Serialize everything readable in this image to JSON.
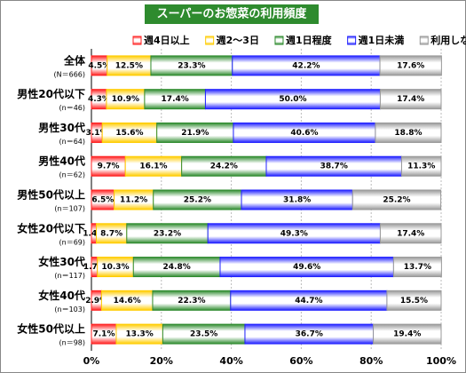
{
  "chart_data": {
    "type": "stacked-bar-horizontal",
    "title": "スーパーのお惣菜の利用頻度",
    "categories": [
      "全体",
      "男性20代以下",
      "男性30代",
      "男性40代",
      "男性50代以上",
      "女性20代以下",
      "女性30代",
      "女性40代",
      "女性50代以上"
    ],
    "category_notes": [
      "(N＝666)",
      "(n＝46)",
      "(n＝64)",
      "(n＝62)",
      "(n＝107)",
      "(n＝69)",
      "(n＝117)",
      "(n＝103)",
      "(n＝98)"
    ],
    "series": [
      {
        "name": "週4日以上",
        "color": "#ff2020",
        "values": [
          4.5,
          4.3,
          3.1,
          9.7,
          6.5,
          1.4,
          1.7,
          2.9,
          7.1
        ],
        "value_labels": [
          "4.5%",
          "4.3%",
          "3.1%",
          "9.7%",
          "6.5%",
          "1.4%",
          "1.7%",
          "2.9%",
          "7.1%"
        ]
      },
      {
        "name": "週2～3日",
        "color": "#ffcc00",
        "values": [
          12.5,
          10.9,
          15.6,
          16.1,
          11.2,
          8.7,
          10.3,
          14.6,
          13.3
        ],
        "value_labels": [
          "12.5%",
          "10.9%",
          "15.6%",
          "16.1%",
          "11.2%",
          "8.7%",
          "10.3%",
          "14.6%",
          "13.3%"
        ]
      },
      {
        "name": "週1日程度",
        "color": "#2e8b2e",
        "values": [
          23.3,
          17.4,
          21.9,
          24.2,
          25.2,
          23.2,
          24.8,
          22.3,
          23.5
        ],
        "value_labels": [
          "23.3%",
          "17.4%",
          "21.9%",
          "24.2%",
          "25.2%",
          "23.2%",
          "24.8%",
          "22.3%",
          "23.5%"
        ]
      },
      {
        "name": "週1日未満",
        "color": "#2020ff",
        "values": [
          42.2,
          50.0,
          40.6,
          38.7,
          31.8,
          49.3,
          49.6,
          44.7,
          36.7
        ],
        "value_labels": [
          "42.2%",
          "50.0%",
          "40.6%",
          "38.7%",
          "31.8%",
          "49.3%",
          "49.6%",
          "44.7%",
          "36.7%"
        ]
      },
      {
        "name": "利用しない",
        "color": "#999999",
        "values": [
          17.6,
          17.4,
          18.8,
          11.3,
          25.2,
          17.4,
          13.7,
          15.5,
          19.4
        ],
        "value_labels": [
          "17.6%",
          "17.4%",
          "18.8%",
          "11.3%",
          "25.2%",
          "17.4%",
          "13.7%",
          "15.5%",
          "19.4%"
        ]
      }
    ],
    "xlim": [
      0,
      100
    ],
    "xticks": [
      {
        "value": 0,
        "label": "0%"
      },
      {
        "value": 20,
        "label": "20%"
      },
      {
        "value": 40,
        "label": "40%"
      },
      {
        "value": 60,
        "label": "60%"
      },
      {
        "value": 80,
        "label": "80%"
      },
      {
        "value": 100,
        "label": "100%"
      }
    ],
    "legend": "top"
  }
}
